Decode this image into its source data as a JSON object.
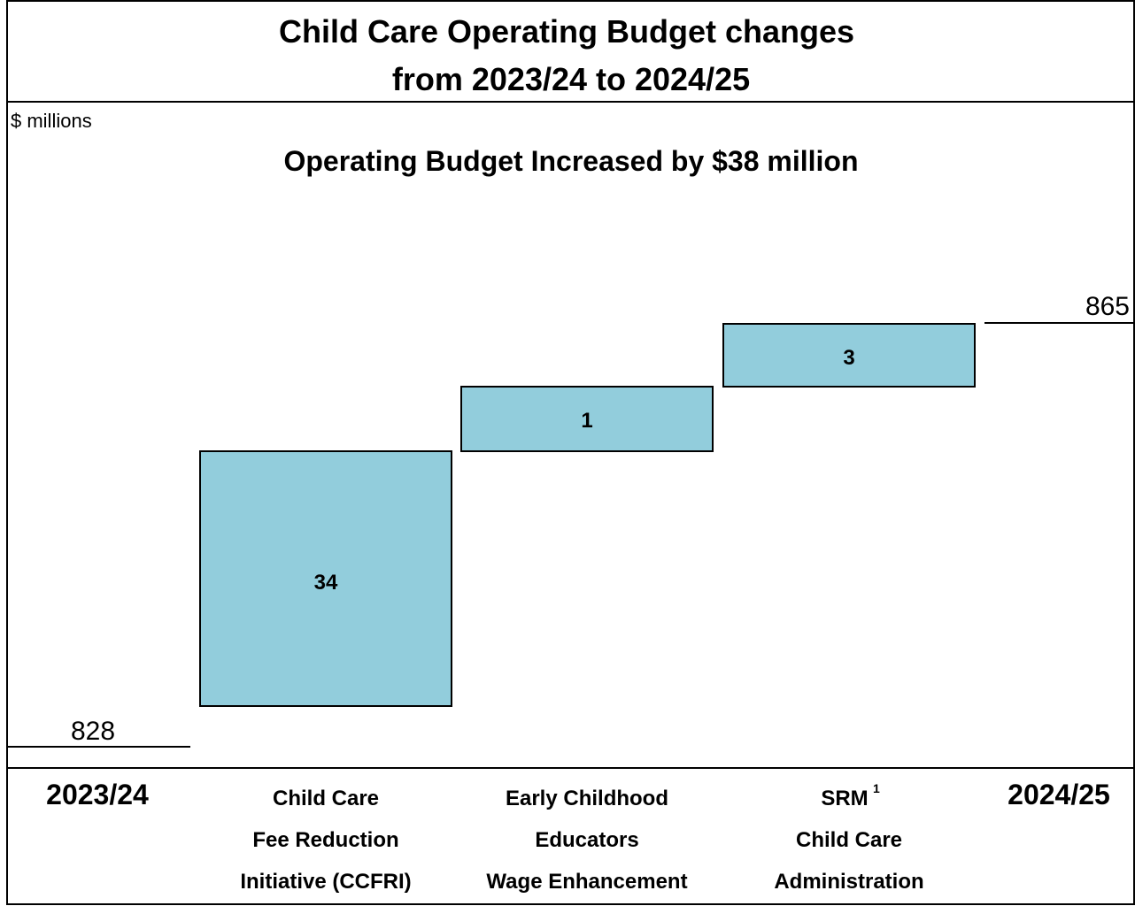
{
  "title_line1": "Child Care Operating Budget changes",
  "title_line2": "from 2023/24 to 2024/25",
  "unit_label": "$ millions",
  "subtitle": "Operating Budget Increased by $38 million",
  "colors": {
    "bar_fill": "#92cddc",
    "bar_stroke": "#000000"
  },
  "chart_data": {
    "type": "waterfall",
    "start": {
      "label": "2023/24",
      "value": 828
    },
    "end": {
      "label": "2024/25",
      "value": 865
    },
    "steps": [
      {
        "label_lines": [
          "Child Care",
          "Fee Reduction",
          "Initiative (CCFRI)"
        ],
        "value": 34
      },
      {
        "label_lines": [
          "Early Childhood",
          "Educators",
          "Wage Enhancement"
        ],
        "value": 1
      },
      {
        "label_lines": [
          "SRM",
          "Child Care",
          "Administration"
        ],
        "label_superscript": "1",
        "value": 3
      }
    ]
  }
}
